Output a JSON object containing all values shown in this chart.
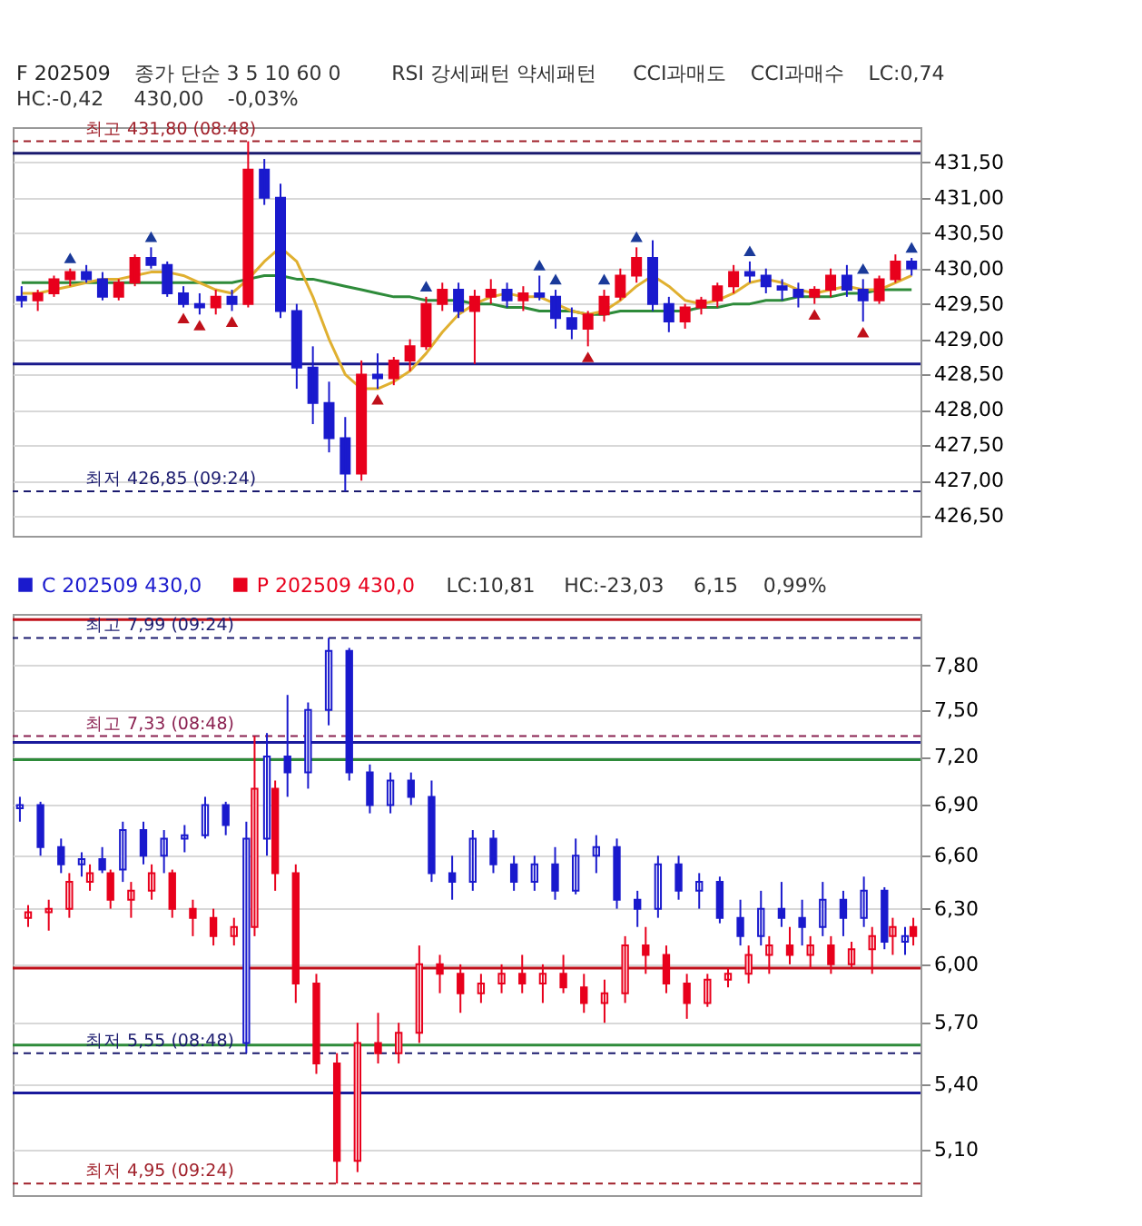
{
  "chart_data": [
    {
      "type": "candlestick",
      "title": "F 202509",
      "categories": [
        null,
        null,
        null,
        null,
        null,
        null,
        null,
        null,
        null,
        null,
        null,
        null,
        null,
        null,
        null,
        null,
        null,
        null,
        null,
        null,
        null,
        null,
        null,
        null,
        null,
        null,
        null,
        null,
        null,
        null,
        null,
        null,
        null,
        null,
        null,
        null,
        null,
        null,
        null,
        null,
        null,
        null,
        null,
        null,
        null,
        null,
        null,
        null,
        null,
        null,
        null,
        null,
        null,
        null,
        null,
        null
      ],
      "series": [
        {
          "ohlc": [
            [
              429.6,
              429.75,
              429.45,
              429.55
            ],
            [
              429.55,
              429.7,
              429.4,
              429.65
            ],
            [
              429.65,
              429.9,
              429.6,
              429.85
            ],
            [
              429.85,
              430.0,
              429.75,
              429.95
            ],
            [
              429.95,
              430.05,
              429.8,
              429.85
            ],
            [
              429.85,
              429.95,
              429.55,
              429.6
            ],
            [
              429.6,
              429.85,
              429.55,
              429.8
            ],
            [
              429.8,
              430.2,
              429.75,
              430.15
            ],
            [
              430.15,
              430.3,
              430.0,
              430.05
            ],
            [
              430.05,
              430.1,
              429.6,
              429.65
            ],
            [
              429.65,
              429.75,
              429.45,
              429.5
            ],
            [
              429.5,
              429.65,
              429.35,
              429.45
            ],
            [
              429.45,
              429.7,
              429.35,
              429.6
            ],
            [
              429.6,
              429.7,
              429.4,
              429.5
            ],
            [
              429.5,
              431.8,
              429.45,
              431.4
            ],
            [
              431.4,
              431.55,
              430.9,
              431.0
            ],
            [
              431.0,
              431.2,
              429.3,
              429.4
            ],
            [
              429.4,
              429.5,
              428.3,
              428.6
            ],
            [
              428.6,
              428.9,
              427.8,
              428.1
            ],
            [
              428.1,
              428.4,
              427.4,
              427.6
            ],
            [
              427.6,
              427.9,
              426.85,
              427.1
            ],
            [
              427.1,
              428.7,
              427.0,
              428.5
            ],
            [
              428.5,
              428.8,
              428.3,
              428.45
            ],
            [
              428.45,
              428.75,
              428.35,
              428.7
            ],
            [
              428.7,
              429.0,
              428.55,
              428.9
            ],
            [
              428.9,
              429.6,
              428.85,
              429.5
            ],
            [
              429.5,
              429.8,
              429.4,
              429.7
            ],
            [
              429.7,
              429.8,
              429.3,
              429.4
            ],
            [
              429.4,
              429.7,
              428.65,
              429.6
            ],
            [
              429.6,
              429.85,
              429.5,
              429.7
            ],
            [
              429.7,
              429.8,
              429.45,
              429.55
            ],
            [
              429.55,
              429.75,
              429.4,
              429.65
            ],
            [
              429.65,
              429.9,
              429.55,
              429.6
            ],
            [
              429.6,
              429.7,
              429.15,
              429.3
            ],
            [
              429.3,
              429.45,
              429.0,
              429.15
            ],
            [
              429.15,
              429.4,
              428.9,
              429.35
            ],
            [
              429.35,
              429.7,
              429.25,
              429.6
            ],
            [
              429.6,
              430.0,
              429.55,
              429.9
            ],
            [
              429.9,
              430.3,
              429.8,
              430.15
            ],
            [
              430.15,
              430.4,
              429.4,
              429.5
            ],
            [
              429.5,
              429.6,
              429.1,
              429.25
            ],
            [
              429.25,
              429.5,
              429.15,
              429.45
            ],
            [
              429.45,
              429.6,
              429.35,
              429.55
            ],
            [
              429.55,
              429.8,
              429.45,
              429.75
            ],
            [
              429.75,
              430.05,
              429.65,
              429.95
            ],
            [
              429.95,
              430.1,
              429.8,
              429.9
            ],
            [
              429.9,
              430.0,
              429.65,
              429.75
            ],
            [
              429.75,
              429.85,
              429.55,
              429.7
            ],
            [
              429.7,
              429.8,
              429.45,
              429.6
            ],
            [
              429.6,
              429.75,
              429.5,
              429.7
            ],
            [
              429.7,
              430.0,
              429.6,
              429.9
            ],
            [
              429.9,
              430.05,
              429.6,
              429.7
            ],
            [
              429.7,
              429.85,
              429.25,
              429.55
            ],
            [
              429.55,
              429.9,
              429.5,
              429.85
            ],
            [
              429.85,
              430.2,
              429.8,
              430.1
            ],
            [
              430.1,
              430.15,
              429.9,
              430.0
            ]
          ],
          "colors": [
            "#1a1acd",
            "#e8001c",
            "#e8001c",
            "#e8001c",
            "#1a1acd",
            "#1a1acd",
            "#e8001c",
            "#e8001c",
            "#1a1acd",
            "#1a1acd",
            "#1a1acd",
            "#1a1acd",
            "#e8001c",
            "#1a1acd",
            "#e8001c",
            "#1a1acd",
            "#1a1acd",
            "#1a1acd",
            "#1a1acd",
            "#1a1acd",
            "#1a1acd",
            "#e8001c",
            "#1a1acd",
            "#e8001c",
            "#e8001c",
            "#e8001c",
            "#e8001c",
            "#1a1acd",
            "#e8001c",
            "#e8001c",
            "#1a1acd",
            "#e8001c",
            "#1a1acd",
            "#1a1acd",
            "#1a1acd",
            "#e8001c",
            "#e8001c",
            "#e8001c",
            "#e8001c",
            "#1a1acd",
            "#1a1acd",
            "#e8001c",
            "#e8001c",
            "#e8001c",
            "#e8001c",
            "#1a1acd",
            "#1a1acd",
            "#1a1acd",
            "#1a1acd",
            "#e8001c",
            "#e8001c",
            "#1a1acd",
            "#1a1acd",
            "#e8001c",
            "#e8001c",
            "#1a1acd"
          ]
        },
        {
          "type": "line",
          "color": "#e0b030",
          "values": [
            429.65,
            429.65,
            429.7,
            429.75,
            429.8,
            429.85,
            429.85,
            429.9,
            429.95,
            429.95,
            429.9,
            429.8,
            429.7,
            429.65,
            429.85,
            430.1,
            430.3,
            430.1,
            429.6,
            429.0,
            428.5,
            428.3,
            428.3,
            428.4,
            428.55,
            428.8,
            429.1,
            429.35,
            429.5,
            429.6,
            429.65,
            429.6,
            429.6,
            429.5,
            429.4,
            429.35,
            429.4,
            429.55,
            429.75,
            429.9,
            429.75,
            429.55,
            429.5,
            429.55,
            429.65,
            429.8,
            429.85,
            429.8,
            429.7,
            429.65,
            429.7,
            429.75,
            429.7,
            429.7,
            429.8,
            429.9
          ]
        },
        {
          "type": "line",
          "color": "#2e8b3a",
          "values": [
            429.8,
            429.8,
            429.8,
            429.8,
            429.8,
            429.8,
            429.8,
            429.8,
            429.8,
            429.8,
            429.8,
            429.8,
            429.8,
            429.8,
            429.85,
            429.9,
            429.9,
            429.85,
            429.85,
            429.8,
            429.75,
            429.7,
            429.65,
            429.6,
            429.6,
            429.55,
            429.55,
            429.55,
            429.5,
            429.5,
            429.45,
            429.45,
            429.4,
            429.4,
            429.4,
            429.35,
            429.35,
            429.4,
            429.4,
            429.4,
            429.4,
            429.4,
            429.45,
            429.45,
            429.5,
            429.5,
            429.55,
            429.55,
            429.6,
            429.6,
            429.6,
            429.65,
            429.65,
            429.7,
            429.7,
            429.7
          ]
        },
        {
          "type": "scatter",
          "color": "#1a3a9a",
          "marker": "triangle",
          "values": [
            null,
            null,
            null,
            430.15,
            null,
            null,
            null,
            null,
            430.45,
            null,
            null,
            null,
            null,
            null,
            null,
            null,
            null,
            null,
            null,
            null,
            null,
            null,
            null,
            null,
            null,
            429.75,
            null,
            null,
            null,
            null,
            null,
            null,
            430.05,
            429.85,
            null,
            null,
            429.85,
            null,
            430.45,
            null,
            null,
            null,
            null,
            null,
            null,
            430.25,
            null,
            null,
            null,
            null,
            null,
            null,
            430.0,
            null,
            null,
            430.3
          ]
        },
        {
          "type": "scatter",
          "color": "#c0101a",
          "marker": "triangle",
          "values": [
            null,
            null,
            null,
            null,
            null,
            null,
            null,
            null,
            null,
            null,
            429.3,
            429.2,
            null,
            429.25,
            null,
            null,
            null,
            null,
            null,
            null,
            null,
            null,
            428.15,
            null,
            null,
            null,
            null,
            null,
            null,
            null,
            null,
            null,
            null,
            null,
            null,
            428.75,
            null,
            null,
            null,
            null,
            null,
            null,
            null,
            null,
            null,
            null,
            null,
            null,
            null,
            429.35,
            null,
            null,
            429.1,
            null,
            null,
            null
          ]
        }
      ],
      "ylim": [
        426.22,
        432.0
      ],
      "yticks": [
        {
          "value": 426.5,
          "label": "426,50"
        },
        {
          "value": 427.0,
          "label": "427,00"
        },
        {
          "value": 427.5,
          "label": "427,50"
        },
        {
          "value": 428.0,
          "label": "428,00"
        },
        {
          "value": 428.5,
          "label": "428,50"
        },
        {
          "value": 429.0,
          "label": "429,00"
        },
        {
          "value": 429.5,
          "label": "429,50"
        },
        {
          "value": 430.0,
          "label": "430,00"
        },
        {
          "value": 430.5,
          "label": "430,50"
        },
        {
          "value": 431.0,
          "label": "431,00"
        },
        {
          "value": 431.5,
          "label": "431,50"
        }
      ],
      "grid": "y",
      "tick_labels": "y",
      "ref_lines": [
        {
          "axis": "y",
          "value": 431.8,
          "label": "최고 431,80 (08:48)",
          "color": "#a0202a",
          "line_style": "dashed"
        },
        {
          "axis": "y",
          "value": 431.63,
          "color": "#1a1a6e",
          "line_style": "solid"
        },
        {
          "axis": "y",
          "value": 428.65,
          "color": "#1a1a8c",
          "line_style": "solid"
        },
        {
          "axis": "y",
          "value": 426.85,
          "label": "최저 426,85 (09:24)",
          "color": "#1a1a6e",
          "line_style": "dashed"
        }
      ],
      "annotations": [
        "종가 단순 3 5 10 60 0",
        "RSI 강세패턴 약세패턴",
        "CCI과매도",
        "CCI과매수",
        "LC:0,74",
        "HC:-0,42",
        "430,00",
        "-0,03%"
      ]
    },
    {
      "type": "candlestick",
      "categories": [
        null,
        null,
        null,
        null,
        null,
        null,
        null,
        null,
        null,
        null,
        null,
        null,
        null,
        null,
        null,
        null,
        null,
        null,
        null,
        null,
        null,
        null,
        null,
        null,
        null,
        null,
        null,
        null,
        null,
        null,
        null,
        null,
        null,
        null,
        null,
        null,
        null,
        null,
        null,
        null,
        null,
        null,
        null,
        null
      ],
      "series": [
        {
          "name": "C 202509 430,0",
          "color": "#1a1acd",
          "ohlc": [
            [
              6.88,
              6.95,
              6.8,
              6.9
            ],
            [
              6.9,
              6.92,
              6.6,
              6.65
            ],
            [
              6.65,
              6.7,
              6.5,
              6.55
            ],
            [
              6.55,
              6.62,
              6.48,
              6.58
            ],
            [
              6.58,
              6.65,
              6.5,
              6.52
            ],
            [
              6.52,
              6.8,
              6.45,
              6.75
            ],
            [
              6.75,
              6.8,
              6.55,
              6.6
            ],
            [
              6.6,
              6.75,
              6.5,
              6.7
            ],
            [
              6.7,
              6.78,
              6.62,
              6.72
            ],
            [
              6.72,
              6.95,
              6.7,
              6.9
            ],
            [
              6.9,
              6.92,
              6.72,
              6.78
            ],
            [
              5.6,
              6.8,
              5.55,
              6.7
            ],
            [
              6.7,
              7.35,
              6.6,
              7.2
            ],
            [
              7.2,
              7.6,
              6.95,
              7.1
            ],
            [
              7.1,
              7.55,
              7.0,
              7.5
            ],
            [
              7.5,
              7.99,
              7.4,
              7.9
            ],
            [
              7.9,
              7.92,
              7.05,
              7.1
            ],
            [
              7.1,
              7.15,
              6.85,
              6.9
            ],
            [
              6.9,
              7.1,
              6.85,
              7.05
            ],
            [
              7.05,
              7.1,
              6.9,
              6.95
            ],
            [
              6.95,
              7.05,
              6.45,
              6.5
            ],
            [
              6.5,
              6.6,
              6.35,
              6.45
            ],
            [
              6.45,
              6.75,
              6.4,
              6.7
            ],
            [
              6.7,
              6.75,
              6.5,
              6.55
            ],
            [
              6.55,
              6.6,
              6.4,
              6.45
            ],
            [
              6.45,
              6.6,
              6.4,
              6.55
            ],
            [
              6.55,
              6.65,
              6.35,
              6.4
            ],
            [
              6.4,
              6.7,
              6.38,
              6.6
            ],
            [
              6.6,
              6.72,
              6.5,
              6.65
            ],
            [
              6.65,
              6.7,
              6.3,
              6.35
            ],
            [
              6.35,
              6.4,
              6.2,
              6.3
            ],
            [
              6.3,
              6.6,
              6.25,
              6.55
            ],
            [
              6.55,
              6.6,
              6.35,
              6.4
            ],
            [
              6.4,
              6.5,
              6.3,
              6.45
            ],
            [
              6.45,
              6.48,
              6.22,
              6.25
            ],
            [
              6.25,
              6.35,
              6.1,
              6.15
            ],
            [
              6.15,
              6.4,
              6.1,
              6.3
            ],
            [
              6.3,
              6.45,
              6.2,
              6.25
            ],
            [
              6.25,
              6.35,
              6.1,
              6.2
            ],
            [
              6.2,
              6.45,
              6.15,
              6.35
            ],
            [
              6.35,
              6.4,
              6.15,
              6.25
            ],
            [
              6.25,
              6.48,
              6.2,
              6.4
            ],
            [
              6.4,
              6.42,
              6.08,
              6.12
            ],
            [
              6.12,
              6.2,
              6.05,
              6.15
            ]
          ]
        },
        {
          "name": "P 202509 430,0",
          "color": "#e8001c",
          "ohlc": [
            [
              6.25,
              6.32,
              6.2,
              6.28
            ],
            [
              6.28,
              6.35,
              6.18,
              6.3
            ],
            [
              6.3,
              6.5,
              6.25,
              6.45
            ],
            [
              6.45,
              6.55,
              6.4,
              6.5
            ],
            [
              6.5,
              6.52,
              6.3,
              6.35
            ],
            [
              6.35,
              6.45,
              6.25,
              6.4
            ],
            [
              6.4,
              6.55,
              6.35,
              6.5
            ],
            [
              6.5,
              6.52,
              6.25,
              6.3
            ],
            [
              6.3,
              6.35,
              6.15,
              6.25
            ],
            [
              6.25,
              6.3,
              6.1,
              6.15
            ],
            [
              6.15,
              6.25,
              6.1,
              6.2
            ],
            [
              6.2,
              7.33,
              6.15,
              7.0
            ],
            [
              7.0,
              7.05,
              6.4,
              6.5
            ],
            [
              6.5,
              6.55,
              5.8,
              5.9
            ],
            [
              5.9,
              5.95,
              5.45,
              5.5
            ],
            [
              5.5,
              5.55,
              4.95,
              5.05
            ],
            [
              5.05,
              5.7,
              5.0,
              5.6
            ],
            [
              5.6,
              5.75,
              5.5,
              5.55
            ],
            [
              5.55,
              5.7,
              5.5,
              5.65
            ],
            [
              5.65,
              6.1,
              5.6,
              6.0
            ],
            [
              6.0,
              6.05,
              5.85,
              5.95
            ],
            [
              5.95,
              6.0,
              5.75,
              5.85
            ],
            [
              5.85,
              5.95,
              5.8,
              5.9
            ],
            [
              5.9,
              6.0,
              5.85,
              5.95
            ],
            [
              5.95,
              6.05,
              5.85,
              5.9
            ],
            [
              5.9,
              6.0,
              5.8,
              5.95
            ],
            [
              5.95,
              6.05,
              5.85,
              5.88
            ],
            [
              5.88,
              5.95,
              5.75,
              5.8
            ],
            [
              5.8,
              5.92,
              5.7,
              5.85
            ],
            [
              5.85,
              6.15,
              5.8,
              6.1
            ],
            [
              6.1,
              6.2,
              5.95,
              6.05
            ],
            [
              6.05,
              6.1,
              5.85,
              5.9
            ],
            [
              5.9,
              5.95,
              5.72,
              5.8
            ],
            [
              5.8,
              5.95,
              5.78,
              5.92
            ],
            [
              5.92,
              5.98,
              5.88,
              5.95
            ],
            [
              5.95,
              6.1,
              5.9,
              6.05
            ],
            [
              6.05,
              6.15,
              5.95,
              6.1
            ],
            [
              6.1,
              6.2,
              6.0,
              6.05
            ],
            [
              6.05,
              6.15,
              5.98,
              6.1
            ],
            [
              6.1,
              6.15,
              5.95,
              6.0
            ],
            [
              6.0,
              6.12,
              5.98,
              6.08
            ],
            [
              6.08,
              6.2,
              5.95,
              6.15
            ],
            [
              6.15,
              6.25,
              6.05,
              6.2
            ],
            [
              6.2,
              6.25,
              6.1,
              6.15
            ]
          ]
        }
      ],
      "ylim": [
        4.9,
        8.16
      ],
      "log": "y",
      "yticks": [
        {
          "value": 5.1,
          "label": "5,10"
        },
        {
          "value": 5.4,
          "label": "5,40"
        },
        {
          "value": 5.7,
          "label": "5,70"
        },
        {
          "value": 6.0,
          "label": "6,00"
        },
        {
          "value": 6.3,
          "label": "6,30"
        },
        {
          "value": 6.6,
          "label": "6,60"
        },
        {
          "value": 6.9,
          "label": "6,90"
        },
        {
          "value": 7.2,
          "label": "7,20"
        },
        {
          "value": 7.5,
          "label": "7,50"
        },
        {
          "value": 7.8,
          "label": "7,80"
        }
      ],
      "grid": "y",
      "tick_labels": "y",
      "legend": "top left",
      "ref_lines": [
        {
          "axis": "y",
          "value": 8.12,
          "color": "#c0101a",
          "line_style": "solid"
        },
        {
          "axis": "y",
          "value": 7.99,
          "label": "최고 7,99 (09:24)",
          "color": "#1a1a6e",
          "line_style": "dashed"
        },
        {
          "axis": "y",
          "value": 7.33,
          "label": "최고 7,33 (08:48)",
          "color": "#8a2050",
          "line_style": "dashed"
        },
        {
          "axis": "y",
          "value": 7.29,
          "color": "#1a1a9c",
          "line_style": "solid"
        },
        {
          "axis": "y",
          "value": 7.18,
          "color": "#2e8b3a",
          "line_style": "solid"
        },
        {
          "axis": "y",
          "value": 5.98,
          "color": "#c0101a",
          "line_style": "solid"
        },
        {
          "axis": "y",
          "value": 5.59,
          "color": "#2e8b3a",
          "line_style": "solid"
        },
        {
          "axis": "y",
          "value": 5.55,
          "label": "최저 5,55 (08:48)",
          "color": "#1a1a6e",
          "line_style": "dashed"
        },
        {
          "axis": "y",
          "value": 5.36,
          "color": "#1a1a9c",
          "line_style": "solid"
        },
        {
          "axis": "y",
          "value": 4.95,
          "label": "최저 4,95 (09:24)",
          "color": "#a0202a",
          "line_style": "dashed"
        }
      ],
      "annotations": [
        "LC:10,81",
        "HC:-23,03",
        "6,15",
        "0,99%"
      ]
    }
  ]
}
